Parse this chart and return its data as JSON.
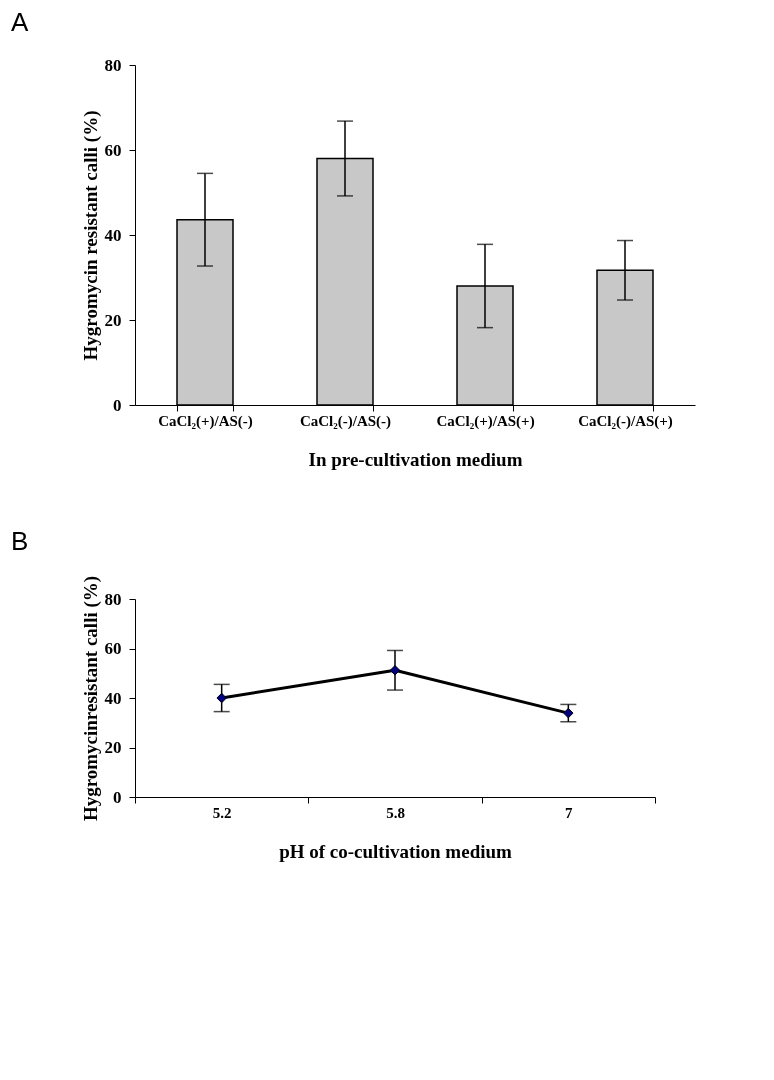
{
  "chart_data": [
    {
      "type": "bar",
      "title": "A",
      "xlabel": "In pre-cultivation medium",
      "ylabel": "Hygromycin resistant calli (%)",
      "categories": [
        "CaCl₂(+)/AS(-)",
        "CaCl₂(-)/AS(-)",
        "CaCl₂(+)/AS(+)",
        "CaCl₂(-)/AS(+)"
      ],
      "values": [
        43.6,
        58.0,
        28.0,
        31.7
      ],
      "errors": [
        10.9,
        8.8,
        9.8,
        7.0
      ],
      "color": "#c8c8c8",
      "ylim": [
        0,
        80
      ],
      "yticks": [
        0,
        20,
        40,
        60,
        80
      ],
      "grid": false
    },
    {
      "type": "line",
      "title": "B",
      "xlabel": "pH of co-cultivation medium",
      "ylabel": "Hygromycinresistant calli (%)",
      "categories": [
        "5.2",
        "5.8",
        "7"
      ],
      "series": [
        {
          "color": "#000000",
          "values": [
            40.0,
            51.2,
            33.9
          ],
          "errors": [
            5.5,
            8.0,
            3.5
          ]
        }
      ],
      "marker": "diamond",
      "line_style": "solid",
      "ylim": [
        0,
        80
      ],
      "yticks": [
        0,
        20,
        40,
        60,
        80
      ],
      "grid": false
    }
  ]
}
